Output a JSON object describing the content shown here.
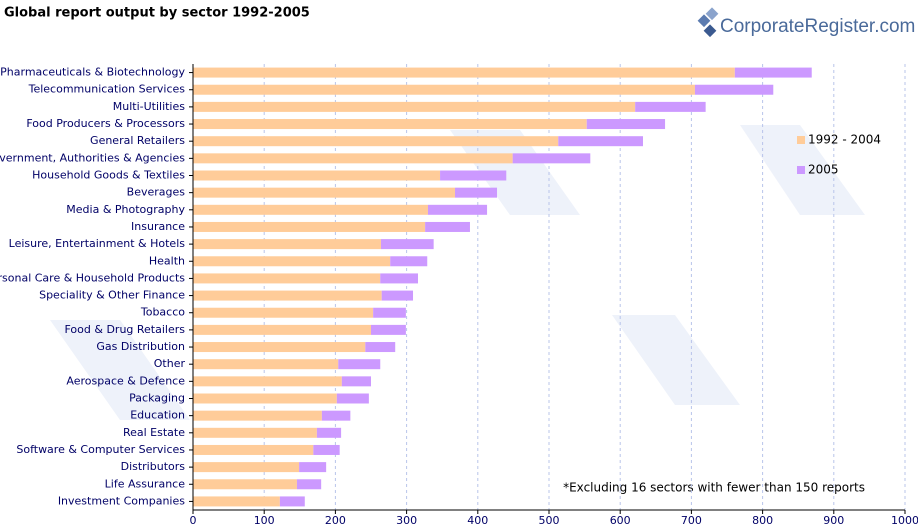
{
  "chart_data": {
    "type": "stacked-barh",
    "title": "Global report output by sector 1992-2005",
    "logo": "CorporateRegister.com",
    "note": "*Excluding 16 sectors with fewer than 150 reports",
    "categories": [
      "Pharmaceuticals & Biotechnology",
      "Telecommunication Services",
      "Multi-Utilities",
      "Food Producers & Processors",
      "General Retailers",
      "Government, Authorities & Agencies",
      "Household Goods & Textiles",
      "Beverages",
      "Media & Photography",
      "Insurance",
      "Leisure, Entertainment & Hotels",
      "Health",
      "Personal Care & Household Products",
      "Speciality & Other Finance",
      "Tobacco",
      "Food & Drug Retailers",
      "Gas Distribution",
      "Other",
      "Aerospace & Defence",
      "Packaging",
      "Education",
      "Real Estate",
      "Software & Computer Services",
      "Distributors",
      "Life Assurance",
      "Investment Companies"
    ],
    "series": [
      {
        "name": "1992 - 2004",
        "color": "#ffcc99",
        "values": [
          761,
          705,
          621,
          553,
          513,
          449,
          347,
          368,
          330,
          326,
          264,
          277,
          263,
          265,
          253,
          250,
          242,
          204,
          209,
          202,
          181,
          174,
          169,
          149,
          146,
          122
        ]
      },
      {
        "name": "2005",
        "color": "#cc99ff",
        "values": [
          108,
          110,
          99,
          110,
          119,
          109,
          93,
          59,
          83,
          63,
          74,
          52,
          53,
          44,
          46,
          49,
          42,
          59,
          41,
          45,
          40,
          34,
          37,
          38,
          34,
          35
        ]
      }
    ],
    "xlim": [
      0,
      1000
    ],
    "xticks": [
      0,
      100,
      200,
      300,
      400,
      500,
      600,
      700,
      800,
      900,
      1000
    ],
    "grid": true,
    "legend": "right"
  }
}
